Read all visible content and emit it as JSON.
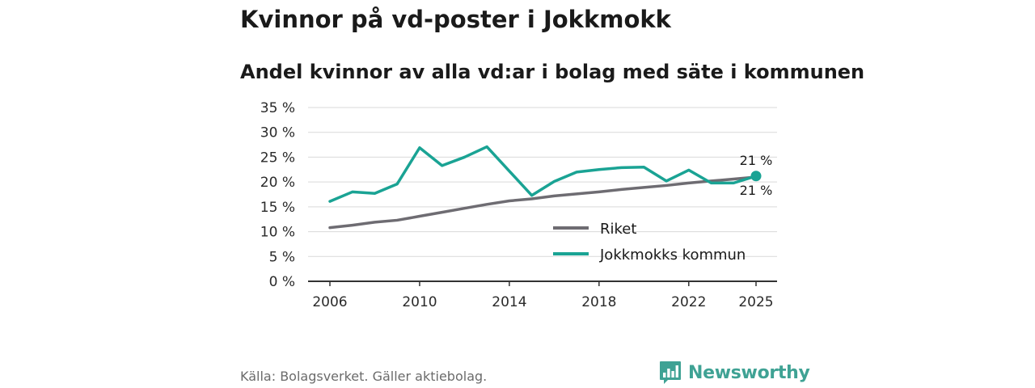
{
  "header": {
    "title": "Kvinnor på vd-poster i Jokkmokk",
    "subtitle": "Andel kvinnor av alla vd:ar i bolag med säte i kommunen"
  },
  "footer": {
    "source": "Källa: Bolagsverket. Gäller aktiebolag.",
    "brand": "Newsworthy"
  },
  "colors": {
    "riket": "#6e6c72",
    "kommun": "#1aa394",
    "grid": "#d9d9d9",
    "axis": "#333333",
    "brand": "#3fa294"
  },
  "chart_data": {
    "type": "line",
    "title": "Andel kvinnor av alla vd:ar i bolag med säte i kommunen",
    "xlabel": "",
    "ylabel": "",
    "x": [
      2006,
      2007,
      2008,
      2009,
      2010,
      2011,
      2012,
      2013,
      2014,
      2015,
      2016,
      2017,
      2018,
      2019,
      2020,
      2021,
      2022,
      2023,
      2024,
      2025
    ],
    "xlim": [
      2006,
      2025
    ],
    "ylim": [
      0,
      35
    ],
    "x_ticks": [
      2006,
      2010,
      2014,
      2018,
      2022,
      2025
    ],
    "y_ticks": [
      0,
      5,
      10,
      15,
      20,
      25,
      30,
      35
    ],
    "y_tick_labels": [
      "0 %",
      "5 %",
      "10 %",
      "15 %",
      "20 %",
      "25 %",
      "30 %",
      "35 %"
    ],
    "grid": true,
    "legend_position": "bottom-right",
    "series": [
      {
        "name": "Riket",
        "values": [
          10.8,
          11.3,
          11.9,
          12.3,
          13.1,
          13.9,
          14.7,
          15.5,
          16.2,
          16.6,
          17.2,
          17.6,
          18.0,
          18.5,
          18.9,
          19.3,
          19.8,
          20.2,
          20.6,
          21.0
        ]
      },
      {
        "name": "Jokkmokks kommun",
        "values": [
          16.1,
          18.0,
          17.7,
          19.6,
          26.9,
          23.3,
          25.0,
          27.1,
          22.2,
          17.3,
          20.1,
          22.0,
          22.5,
          22.9,
          23.0,
          20.2,
          22.4,
          19.8,
          19.8,
          21.2
        ]
      }
    ],
    "end_labels": [
      {
        "series": "Jokkmokks kommun",
        "text": "21 %",
        "position": "above"
      },
      {
        "series": "Riket",
        "text": "21 %",
        "position": "below"
      }
    ]
  }
}
